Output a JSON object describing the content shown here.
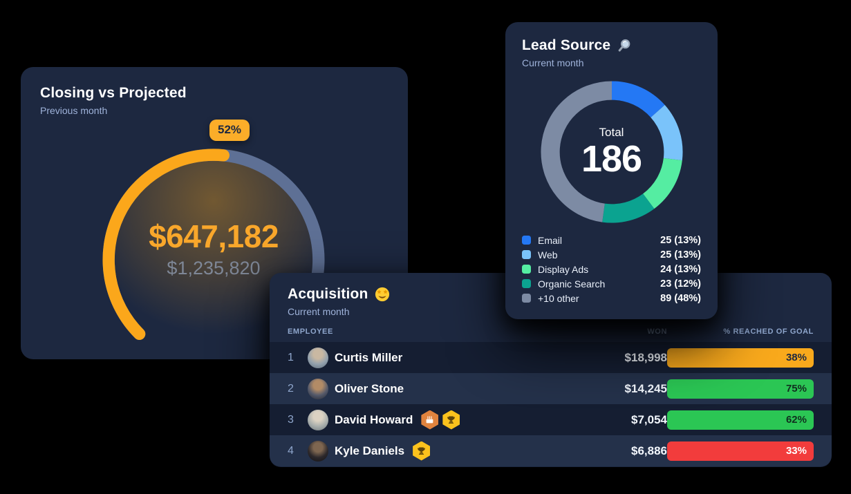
{
  "page": {
    "background": "#000000"
  },
  "cards": {
    "closing": {
      "title": "Closing vs Projected",
      "subtitle": "Previous month",
      "chart": {
        "type": "gauge",
        "percent": 52,
        "badge_label": "52%",
        "value_label": "$647,182",
        "projected_label": "$1,235,820",
        "value": 647182,
        "projected": 1235820,
        "start_angle": 225,
        "sweep": 270,
        "arc_color": "#FBA71B",
        "track_color": "#5E7095",
        "badge_bg": "#FBAD29",
        "badge_text_color": "#1D2840"
      }
    },
    "lead_source": {
      "title": "Lead Source",
      "title_icon": "magnifying-glass",
      "subtitle": "Current month",
      "chart": {
        "type": "donut",
        "center_label": "Total",
        "total_label": "186",
        "total": 186,
        "segments": [
          {
            "label": "Email",
            "value": 25,
            "display": "25 (13%)",
            "color": "#2478F4"
          },
          {
            "label": "Web",
            "value": 25,
            "display": "25 (13%)",
            "color": "#7AC3FA"
          },
          {
            "label": "Display Ads",
            "value": 24,
            "display": "24 (13%)",
            "color": "#55EDA2"
          },
          {
            "label": "Organic Search",
            "value": 23,
            "display": "23 (12%)",
            "color": "#0BA390"
          },
          {
            "label": "+10 other",
            "value": 89,
            "display": "89 (48%)",
            "color": "#7D8BA4"
          }
        ]
      }
    },
    "acquisition": {
      "title": "Acquisition",
      "title_icon": "star-struck",
      "subtitle": "Current month",
      "table": {
        "columns": {
          "employee": "EMPLOYEE",
          "won": "WON",
          "goal": "% REACHED OF GOAL"
        },
        "rows": [
          {
            "rank": "1",
            "name": "Curtis Miller",
            "won": "$18,998",
            "goal_pct": "38%",
            "bar_color": "#F9A91C",
            "bar_text": "#1D2840",
            "badges": [],
            "avatar_colors": [
              "#C9B8A2",
              "#93A1AD",
              "#5C6A79"
            ]
          },
          {
            "rank": "2",
            "name": "Oliver Stone",
            "won": "$14,245",
            "goal_pct": "75%",
            "bar_color": "#2BC654",
            "bar_text": "#10301F",
            "badges": [],
            "avatar_colors": [
              "#B28B66",
              "#54596A",
              "#23262F"
            ]
          },
          {
            "rank": "3",
            "name": "David Howard",
            "won": "$7,054",
            "goal_pct": "62%",
            "bar_color": "#2BC654",
            "bar_text": "#10301F",
            "badges": [
              {
                "icon": "cake",
                "bg": "#E0833E"
              },
              {
                "icon": "trophy",
                "bg": "#FBC21D"
              }
            ],
            "avatar_colors": [
              "#DCD2C2",
              "#A8AEAC",
              "#6E767B"
            ]
          },
          {
            "rank": "4",
            "name": "Kyle Daniels",
            "won": "$6,886",
            "goal_pct": "33%",
            "bar_color": "#F23C3C",
            "bar_text": "#FFFFFF",
            "badges": [
              {
                "icon": "trophy",
                "bg": "#FBC21D"
              }
            ],
            "avatar_colors": [
              "#7E6650",
              "#2C282B",
              "#121114"
            ]
          }
        ]
      }
    }
  },
  "chart_data": [
    {
      "type": "gauge",
      "title": "Closing vs Projected",
      "subtitle": "Previous month",
      "percent": 52,
      "value": 647182,
      "projected": 1235820,
      "value_label": "$647,182",
      "projected_label": "$1,235,820"
    },
    {
      "type": "donut",
      "title": "Lead Source",
      "subtitle": "Current month",
      "center_label": "Total",
      "total": 186,
      "segments": [
        {
          "label": "Email",
          "value": 25,
          "pct": 13
        },
        {
          "label": "Web",
          "value": 25,
          "pct": 13
        },
        {
          "label": "Display Ads",
          "value": 24,
          "pct": 13
        },
        {
          "label": "Organic Search",
          "value": 23,
          "pct": 12
        },
        {
          "label": "+10 other",
          "value": 89,
          "pct": 48
        }
      ]
    },
    {
      "type": "table",
      "title": "Acquisition",
      "subtitle": "Current month",
      "columns": [
        "EMPLOYEE",
        "WON",
        "% REACHED OF GOAL"
      ],
      "rows": [
        [
          "1",
          "Curtis Miller",
          "$18,998",
          "38%"
        ],
        [
          "2",
          "Oliver Stone",
          "$14,245",
          "75%"
        ],
        [
          "3",
          "David Howard",
          "$7,054",
          "62%"
        ],
        [
          "4",
          "Kyle Daniels",
          "$6,886",
          "33%"
        ]
      ]
    }
  ]
}
